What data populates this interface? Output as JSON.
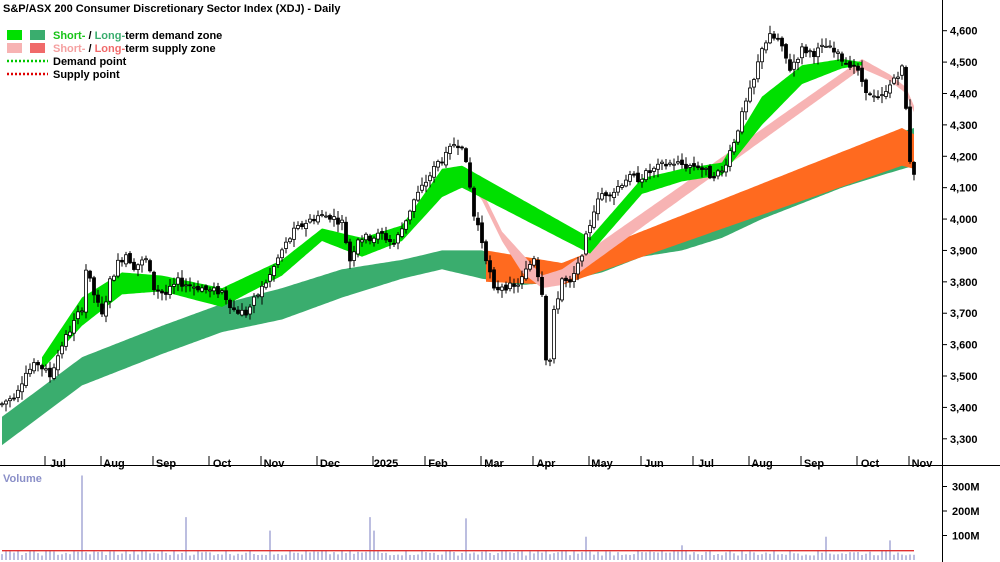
{
  "chart_data": {
    "type": "candlestick",
    "title": "S&P/ASX 200 Consumer Discretionary Sector Index (XDJ) - Daily",
    "legend": [
      {
        "short": "Short-",
        "sep": " / ",
        "long": "Long-",
        "text": "term demand zone",
        "short_color": "#00e000",
        "long_color": "#3aad6e",
        "label_short_color": "#18c418",
        "label_long_color": "#3aad6e"
      },
      {
        "short": "Short-",
        "sep": " / ",
        "long": "Long-",
        "text": "term supply zone",
        "short_color": "#f7b3b3",
        "long_color": "#f06a6a",
        "label_short_color": "#f5a0a0",
        "label_long_color": "#f06a6a"
      },
      {
        "kind": "dotted",
        "color": "#00c800",
        "text": "Demand point"
      },
      {
        "kind": "dotted",
        "color": "#e00000",
        "text": "Supply point"
      }
    ],
    "months": [
      "Jul",
      "Aug",
      "Sep",
      "Oct",
      "Nov",
      "Dec",
      "2025",
      "Feb",
      "Mar",
      "Apr",
      "May",
      "Jun",
      "Jul",
      "Aug",
      "Sep",
      "Oct",
      "Nov"
    ],
    "y_ticks": [
      3300,
      3400,
      3500,
      3600,
      3700,
      3800,
      3900,
      4000,
      4100,
      4200,
      4300,
      4400,
      4500,
      4600
    ],
    "ylim": [
      3230,
      4640
    ],
    "volume": {
      "title": "Volume",
      "ticks": [
        "100M",
        "200M",
        "300M"
      ],
      "tick_values": [
        100,
        200,
        300
      ],
      "ylim": [
        0,
        330
      ],
      "spikes": [
        [
          20,
          345
        ],
        [
          46,
          175
        ],
        [
          67,
          120
        ],
        [
          92,
          175
        ],
        [
          93,
          120
        ],
        [
          116,
          170
        ],
        [
          146,
          95
        ],
        [
          170,
          60
        ],
        [
          206,
          95
        ],
        [
          222,
          80
        ],
        [
          232,
          65
        ]
      ],
      "avg_level": 38
    },
    "price_path": [
      [
        0,
        3410
      ],
      [
        3,
        3440
      ],
      [
        6,
        3510
      ],
      [
        9,
        3540
      ],
      [
        12,
        3500
      ],
      [
        15,
        3600
      ],
      [
        18,
        3670
      ],
      [
        20,
        3720
      ],
      [
        21,
        3840
      ],
      [
        23,
        3760
      ],
      [
        25,
        3690
      ],
      [
        27,
        3800
      ],
      [
        29,
        3860
      ],
      [
        31,
        3890
      ],
      [
        33,
        3850
      ],
      [
        36,
        3870
      ],
      [
        38,
        3780
      ],
      [
        41,
        3760
      ],
      [
        44,
        3800
      ],
      [
        47,
        3790
      ],
      [
        50,
        3780
      ],
      [
        52,
        3770
      ],
      [
        55,
        3770
      ],
      [
        58,
        3710
      ],
      [
        61,
        3700
      ],
      [
        64,
        3760
      ],
      [
        67,
        3820
      ],
      [
        70,
        3900
      ],
      [
        73,
        3960
      ],
      [
        76,
        3990
      ],
      [
        79,
        4010
      ],
      [
        82,
        4010
      ],
      [
        85,
        3990
      ],
      [
        87,
        3870
      ],
      [
        89,
        3940
      ],
      [
        92,
        3940
      ],
      [
        95,
        3950
      ],
      [
        98,
        3920
      ],
      [
        100,
        3970
      ],
      [
        103,
        4060
      ],
      [
        106,
        4120
      ],
      [
        109,
        4180
      ],
      [
        111,
        4200
      ],
      [
        113,
        4240
      ],
      [
        115,
        4240
      ],
      [
        116,
        4170
      ],
      [
        117,
        4100
      ],
      [
        118,
        4010
      ],
      [
        119,
        3980
      ],
      [
        121,
        3880
      ],
      [
        123,
        3770
      ],
      [
        125,
        3790
      ],
      [
        128,
        3780
      ],
      [
        130,
        3810
      ],
      [
        133,
        3880
      ],
      [
        135,
        3770
      ],
      [
        136,
        3560
      ],
      [
        137,
        3550
      ],
      [
        138,
        3700
      ],
      [
        140,
        3810
      ],
      [
        142,
        3790
      ],
      [
        144,
        3850
      ],
      [
        146,
        3940
      ],
      [
        148,
        4030
      ],
      [
        150,
        4080
      ],
      [
        153,
        4090
      ],
      [
        156,
        4130
      ],
      [
        159,
        4130
      ],
      [
        162,
        4150
      ],
      [
        165,
        4170
      ],
      [
        168,
        4180
      ],
      [
        171,
        4170
      ],
      [
        174,
        4170
      ],
      [
        177,
        4140
      ],
      [
        180,
        4150
      ],
      [
        183,
        4250
      ],
      [
        186,
        4370
      ],
      [
        188,
        4440
      ],
      [
        190,
        4550
      ],
      [
        192,
        4580
      ],
      [
        194,
        4570
      ],
      [
        197,
        4480
      ],
      [
        200,
        4540
      ],
      [
        203,
        4530
      ],
      [
        206,
        4550
      ],
      [
        209,
        4520
      ],
      [
        211,
        4500
      ],
      [
        213,
        4490
      ],
      [
        215,
        4440
      ],
      [
        217,
        4390
      ],
      [
        219,
        4380
      ],
      [
        221,
        4400
      ],
      [
        223,
        4450
      ],
      [
        225,
        4480
      ],
      [
        226,
        4350
      ],
      [
        227,
        4190
      ],
      [
        228,
        4150
      ]
    ],
    "zones": {
      "long_demand": [
        [
          0,
          3280,
          3370
        ],
        [
          20,
          3470,
          3560
        ],
        [
          40,
          3570,
          3660
        ],
        [
          55,
          3640,
          3730
        ],
        [
          70,
          3680,
          3780
        ],
        [
          85,
          3750,
          3840
        ],
        [
          100,
          3810,
          3870
        ],
        [
          110,
          3840,
          3900
        ],
        [
          120,
          3810,
          3900
        ],
        [
          130,
          3790,
          3860
        ],
        [
          140,
          3800,
          3860
        ],
        [
          150,
          3830,
          3900
        ],
        [
          160,
          3880,
          3940
        ],
        [
          170,
          3900,
          3980
        ],
        [
          180,
          3940,
          4010
        ],
        [
          190,
          4000,
          4060
        ],
        [
          200,
          4050,
          4130
        ],
        [
          210,
          4100,
          4200
        ],
        [
          220,
          4140,
          4260
        ],
        [
          228,
          4170,
          4290
        ]
      ],
      "long_supply": [
        [
          121,
          3800,
          3900
        ],
        [
          140,
          3790,
          3860
        ],
        [
          225,
          4170,
          4290
        ],
        [
          228,
          4160,
          4270
        ]
      ],
      "short_demand": [
        [
          10,
          3520,
          3560
        ],
        [
          20,
          3660,
          3750
        ],
        [
          30,
          3760,
          3830
        ],
        [
          40,
          3770,
          3820
        ],
        [
          55,
          3720,
          3780
        ],
        [
          70,
          3820,
          3870
        ],
        [
          80,
          3930,
          3970
        ],
        [
          90,
          3880,
          3940
        ],
        [
          100,
          3930,
          3980
        ],
        [
          110,
          4070,
          4160
        ],
        [
          115,
          4100,
          4170
        ],
        [
          147,
          3890,
          3940
        ],
        [
          160,
          4080,
          4130
        ],
        [
          170,
          4120,
          4160
        ],
        [
          180,
          4140,
          4180
        ],
        [
          190,
          4300,
          4390
        ],
        [
          200,
          4430,
          4490
        ],
        [
          210,
          4480,
          4510
        ],
        [
          215,
          4490,
          4500
        ]
      ],
      "short_supply": [
        [
          115,
          4140,
          4170
        ],
        [
          120,
          4060,
          4090
        ],
        [
          125,
          3930,
          3960
        ],
        [
          130,
          3830,
          3890
        ],
        [
          135,
          3780,
          3820
        ],
        [
          140,
          3790,
          3840
        ],
        [
          215,
          4480,
          4510
        ],
        [
          222,
          4440,
          4460
        ],
        [
          226,
          4400,
          4420
        ],
        [
          228,
          4340,
          4360
        ]
      ]
    }
  }
}
